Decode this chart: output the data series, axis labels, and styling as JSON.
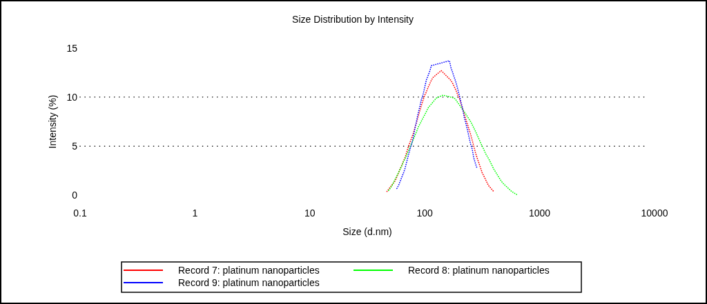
{
  "chart_data": {
    "type": "line",
    "title": "Size Distribution by Intensity",
    "xlabel": "Size (d.nm)",
    "ylabel": "Intensity (%)",
    "log": "x",
    "xlim": [
      0.1,
      10000
    ],
    "xticks": [
      0.1,
      1,
      10,
      100,
      1000,
      10000
    ],
    "ylim": [
      0,
      15
    ],
    "yticks": [
      0,
      5,
      10,
      15
    ],
    "grid": "y",
    "legend": "bottom",
    "line_style": "dotted",
    "series": [
      {
        "name": "Record 7: platinum nanoparticles",
        "color": "#ff0000",
        "x": [
          46.9,
          55.4,
          57.2,
          67.6,
          71.7,
          77.2,
          79.4,
          93.7,
          100,
          103,
          107,
          114,
          118,
          139,
          169,
          175,
          187,
          194,
          200,
          243,
          251,
          277,
          286,
          304,
          316,
          326,
          359,
          398
        ],
        "values": [
          0.4,
          1.5,
          1.9,
          3.9,
          4.9,
          5.9,
          6.3,
          9.2,
          10.2,
          10.5,
          11.0,
          11.7,
          12.0,
          12.7,
          11.7,
          11.4,
          10.7,
          10.2,
          9.9,
          6.7,
          6.2,
          4.3,
          3.8,
          2.9,
          2.3,
          2.0,
          1.0,
          0.4
        ]
      },
      {
        "name": "Record 8: platinum nanoparticles",
        "color": "#00ff00",
        "x": [
          48.5,
          50.0,
          51.9,
          63.1,
          65.1,
          67.2,
          85.0,
          87.4,
          103,
          107,
          126,
          144,
          181,
          187,
          227,
          251,
          259,
          277,
          316,
          326,
          337,
          361,
          372,
          398,
          438,
          467,
          483,
          570,
          648
        ],
        "values": [
          0.5,
          0.7,
          1.0,
          3.0,
          3.4,
          3.7,
          6.5,
          6.9,
          8.5,
          8.9,
          9.9,
          10.2,
          9.9,
          9.7,
          8.3,
          7.5,
          7.2,
          6.5,
          5.0,
          4.7,
          4.3,
          3.7,
          3.4,
          2.7,
          1.9,
          1.4,
          1.2,
          0.4,
          0.0
        ]
      },
      {
        "name": "Record 9: platinum nanoparticles",
        "color": "#0000ff",
        "x": [
          57.2,
          59.1,
          65.4,
          67.2,
          71.7,
          74.4,
          76.9,
          79.4,
          82.4,
          84.7,
          87.4,
          90.4,
          93.3,
          96.9,
          100,
          103,
          111,
          114,
          164,
          169,
          175,
          187,
          194,
          200,
          206,
          213,
          220,
          227,
          235,
          243,
          251,
          259,
          267,
          286
        ],
        "values": [
          0.7,
          1.0,
          2.3,
          2.7,
          4.0,
          4.7,
          5.2,
          5.9,
          6.9,
          7.5,
          8.3,
          9.0,
          9.7,
          10.3,
          11.0,
          11.7,
          12.7,
          13.2,
          13.7,
          13.0,
          12.5,
          11.5,
          10.8,
          10.2,
          9.5,
          8.9,
          8.0,
          7.4,
          6.7,
          5.9,
          5.2,
          4.7,
          3.8,
          2.7
        ]
      }
    ]
  }
}
